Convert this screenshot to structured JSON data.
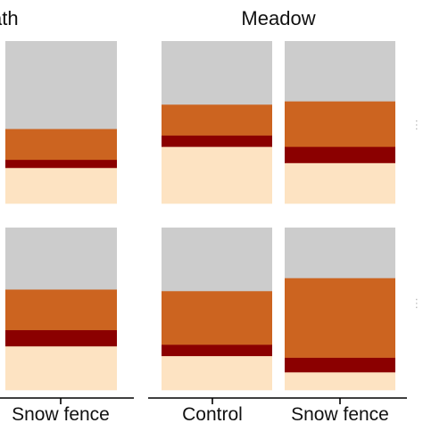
{
  "chart_data": {
    "type": "bar",
    "stacking": "stacked-to-100",
    "facets": [
      {
        "title": "ath",
        "bars": [
          "Snow fence"
        ]
      },
      {
        "title": "Meadow",
        "bars": [
          "Control",
          "Snow fence"
        ]
      }
    ],
    "layer_colors": [
      "#fde3c2",
      "#8b0000",
      "#cc6420",
      "#cccccc"
    ],
    "rows": [
      {
        "side_label": "…",
        "bars": [
          {
            "facet": 0,
            "category": "Snow fence",
            "segments": [
              0.22,
              0.05,
              0.19,
              0.54
            ]
          },
          {
            "facet": 1,
            "category": "Control",
            "segments": [
              0.35,
              0.07,
              0.19,
              0.39
            ]
          },
          {
            "facet": 1,
            "category": "Snow fence",
            "segments": [
              0.25,
              0.1,
              0.28,
              0.37
            ]
          }
        ]
      },
      {
        "side_label": "…",
        "bars": [
          {
            "facet": 0,
            "category": "Snow fence",
            "segments": [
              0.27,
              0.1,
              0.25,
              0.38
            ]
          },
          {
            "facet": 1,
            "category": "Control",
            "segments": [
              0.21,
              0.07,
              0.33,
              0.39
            ]
          },
          {
            "facet": 1,
            "category": "Snow fence",
            "segments": [
              0.11,
              0.09,
              0.49,
              0.31
            ]
          }
        ]
      }
    ],
    "grid": false,
    "legend": "none"
  }
}
